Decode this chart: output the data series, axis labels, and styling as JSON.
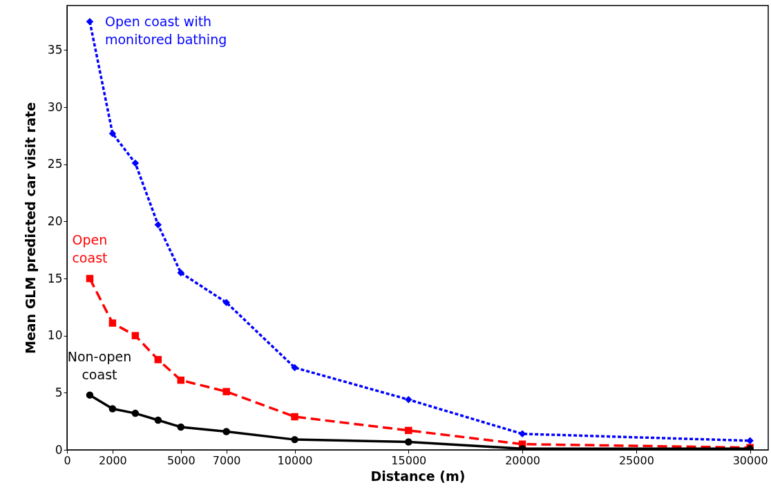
{
  "chart_data": {
    "type": "line",
    "xlabel": "Distance (m)",
    "ylabel": "Mean GLM predicted car visit rate",
    "x": [
      1000,
      2000,
      3000,
      4000,
      5000,
      7000,
      10000,
      15000,
      20000,
      30000
    ],
    "series": [
      {
        "name": "Open coast with monitored bathing",
        "color": "#0000ff",
        "marker": "diamond",
        "line_style": "dotted",
        "values": [
          37.5,
          27.7,
          25.1,
          19.7,
          15.5,
          12.9,
          7.2,
          4.4,
          1.4,
          0.8
        ]
      },
      {
        "name": "Open coast",
        "color": "#ff0000",
        "marker": "square",
        "line_style": "dashed",
        "values": [
          15.0,
          11.1,
          10.0,
          7.9,
          6.1,
          5.1,
          2.9,
          1.7,
          0.5,
          0.2
        ]
      },
      {
        "name": "Non-open coast",
        "color": "#000000",
        "marker": "circle",
        "line_style": "solid",
        "values": [
          4.8,
          3.6,
          3.2,
          2.6,
          2.0,
          1.6,
          0.9,
          0.7,
          0.1,
          0.1
        ]
      }
    ],
    "xlim": [
      0,
      30800
    ],
    "ylim": [
      0,
      38.9
    ],
    "xticks": [
      0,
      2000,
      5000,
      7000,
      10000,
      15000,
      20000,
      25000,
      30000
    ],
    "yticks": [
      0,
      5,
      10,
      15,
      20,
      25,
      30,
      35
    ],
    "grid": false
  }
}
